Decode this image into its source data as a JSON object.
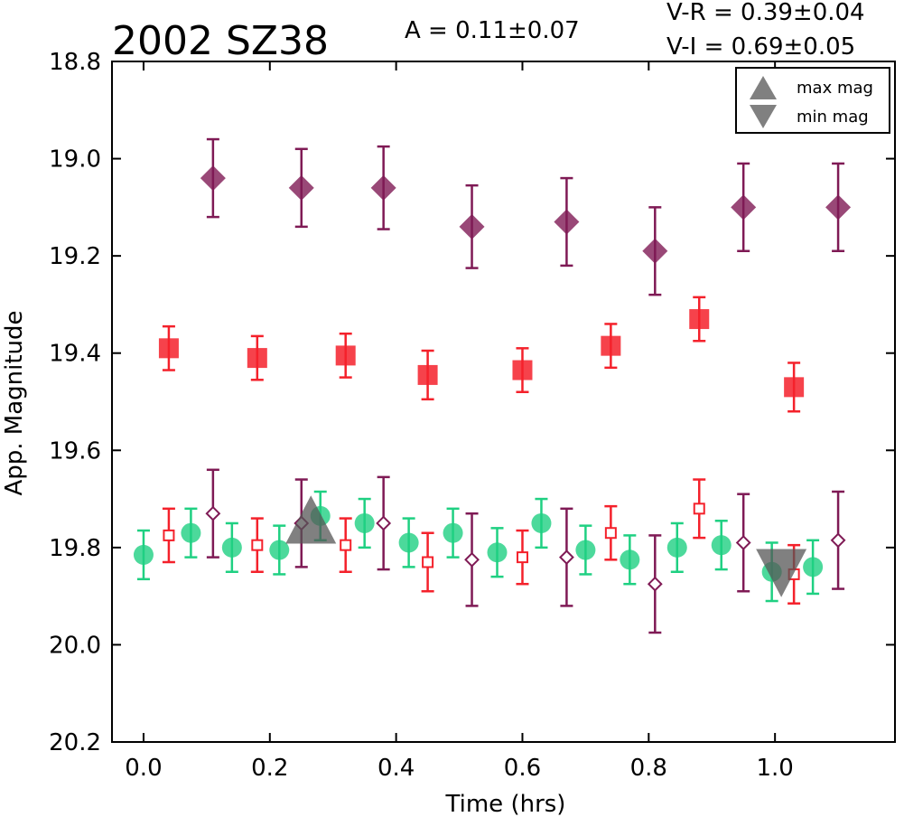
{
  "chart_data": {
    "type": "scatter",
    "title": "2002 SZ38",
    "annotations": {
      "amplitude": "A  = 0.11±0.07",
      "v_r": "V-R = 0.39±0.04",
      "v_i": "V-I  = 0.69±0.05"
    },
    "xlabel": "Time (hrs)",
    "ylabel": "App. Magnitude",
    "xlim": [
      -0.05,
      1.19
    ],
    "ylim": [
      20.2,
      18.8
    ],
    "y_inverted": true,
    "xticks": [
      "0.0",
      "0.2",
      "0.4",
      "0.6",
      "0.8",
      "1.0"
    ],
    "yticks": [
      "18.8",
      "19.0",
      "19.2",
      "19.4",
      "19.6",
      "19.8",
      "20.0",
      "20.2"
    ],
    "grid": false,
    "legend": {
      "placement": "top-right",
      "items": [
        {
          "label": "max mag",
          "marker": "triangle-up"
        },
        {
          "label": "min mag",
          "marker": "triangle-down"
        }
      ]
    },
    "series": [
      {
        "marker": "filled-diamond",
        "color": "#7f1a55",
        "x": [
          0.11,
          0.25,
          0.38,
          0.52,
          0.67,
          0.81,
          0.95,
          1.1
        ],
        "y": [
          19.04,
          19.06,
          19.06,
          19.14,
          19.13,
          19.19,
          19.1,
          19.1
        ],
        "err": [
          0.08,
          0.08,
          0.085,
          0.085,
          0.09,
          0.09,
          0.09,
          0.09
        ]
      },
      {
        "marker": "filled-square",
        "color": "#f4212b",
        "x": [
          0.04,
          0.18,
          0.32,
          0.45,
          0.6,
          0.74,
          0.88,
          1.03
        ],
        "y": [
          19.39,
          19.41,
          19.405,
          19.445,
          19.435,
          19.385,
          19.33,
          19.47
        ],
        "err": [
          0.045,
          0.045,
          0.045,
          0.05,
          0.045,
          0.045,
          0.045,
          0.05
        ]
      },
      {
        "marker": "filled-circle",
        "color": "#1fd082",
        "x": [
          0.0,
          0.075,
          0.14,
          0.215,
          0.28,
          0.35,
          0.42,
          0.49,
          0.56,
          0.63,
          0.7,
          0.77,
          0.845,
          0.915,
          0.995,
          1.06
        ],
        "y": [
          19.815,
          19.77,
          19.8,
          19.805,
          19.735,
          19.75,
          19.79,
          19.77,
          19.81,
          19.75,
          19.805,
          19.825,
          19.8,
          19.795,
          19.85,
          19.84
        ],
        "err": [
          0.05,
          0.05,
          0.05,
          0.05,
          0.05,
          0.05,
          0.05,
          0.05,
          0.05,
          0.05,
          0.05,
          0.05,
          0.05,
          0.05,
          0.06,
          0.055
        ]
      },
      {
        "marker": "open-square",
        "color": "#f4212b",
        "x": [
          0.04,
          0.18,
          0.32,
          0.45,
          0.6,
          0.74,
          0.88,
          1.03
        ],
        "y": [
          19.775,
          19.795,
          19.795,
          19.83,
          19.82,
          19.77,
          19.72,
          19.855
        ],
        "err": [
          0.055,
          0.055,
          0.055,
          0.06,
          0.055,
          0.055,
          0.06,
          0.06
        ]
      },
      {
        "marker": "open-diamond",
        "color": "#7f1a55",
        "x": [
          0.11,
          0.25,
          0.38,
          0.52,
          0.67,
          0.81,
          0.95,
          1.1
        ],
        "y": [
          19.73,
          19.75,
          19.75,
          19.825,
          19.82,
          19.875,
          19.79,
          19.785
        ],
        "err": [
          0.09,
          0.09,
          0.095,
          0.095,
          0.1,
          0.1,
          0.1,
          0.1
        ]
      }
    ],
    "extrema": [
      {
        "type": "max",
        "x": 0.265,
        "y": 19.745
      },
      {
        "type": "min",
        "x": 1.01,
        "y": 19.85
      }
    ],
    "colors": {
      "diamond": "#7f1a55",
      "square": "#f4212b",
      "circle": "#1fd082",
      "extrema": "#555555"
    }
  }
}
